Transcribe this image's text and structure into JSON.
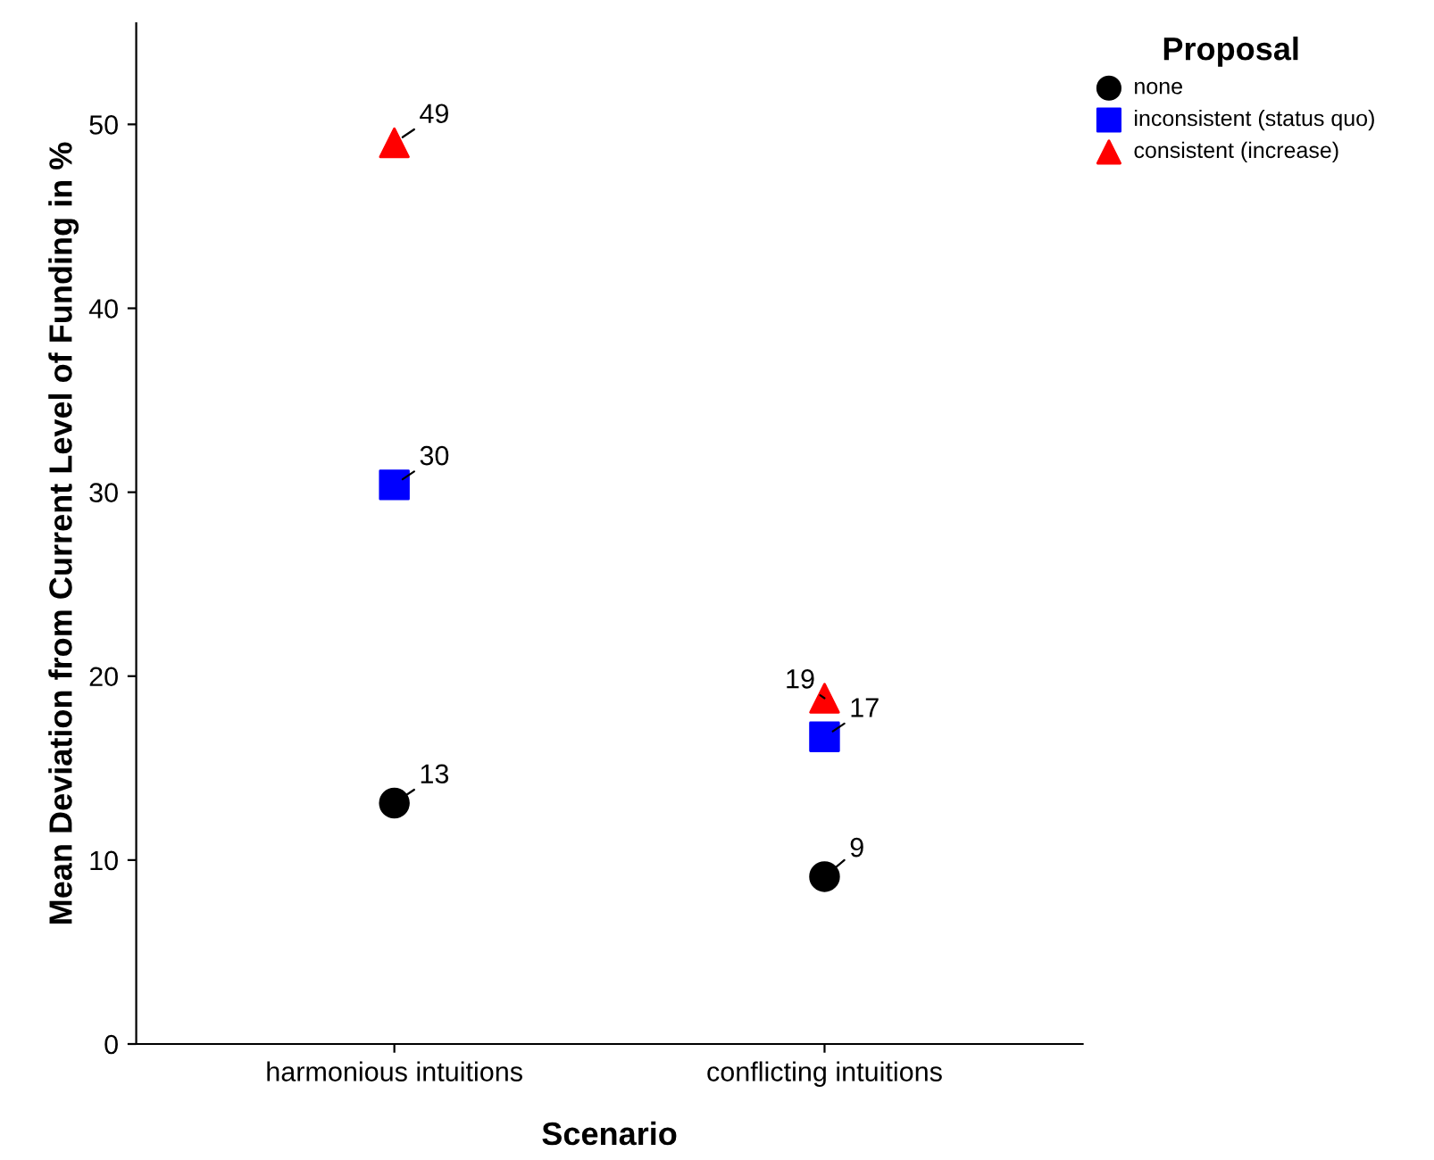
{
  "chart_data": {
    "type": "scatter",
    "xlabel": "Scenario",
    "ylabel": "Mean Deviation from Current Level of Funding in %",
    "legend_title": "Proposal",
    "legend": "top right",
    "grid": false,
    "categories": [
      "harmonious intuitions",
      "conflicting intuitions"
    ],
    "ylim": [
      0,
      55.5
    ],
    "yticks": [
      0,
      10,
      20,
      30,
      40,
      50
    ],
    "series": [
      {
        "name": "none",
        "color": "#000000",
        "marker": "circle",
        "values": [
          13.1,
          9.1
        ],
        "value_labels": [
          "13",
          "9"
        ]
      },
      {
        "name": "inconsistent (status quo)",
        "color": "#0000ff",
        "marker": "square",
        "values": [
          30.4,
          16.7
        ],
        "value_labels": [
          "30",
          "17"
        ]
      },
      {
        "name": "consistent (increase)",
        "color": "#ff0000",
        "marker": "triangle",
        "values": [
          49.0,
          18.8
        ],
        "value_labels": [
          "49",
          "19"
        ]
      }
    ]
  }
}
